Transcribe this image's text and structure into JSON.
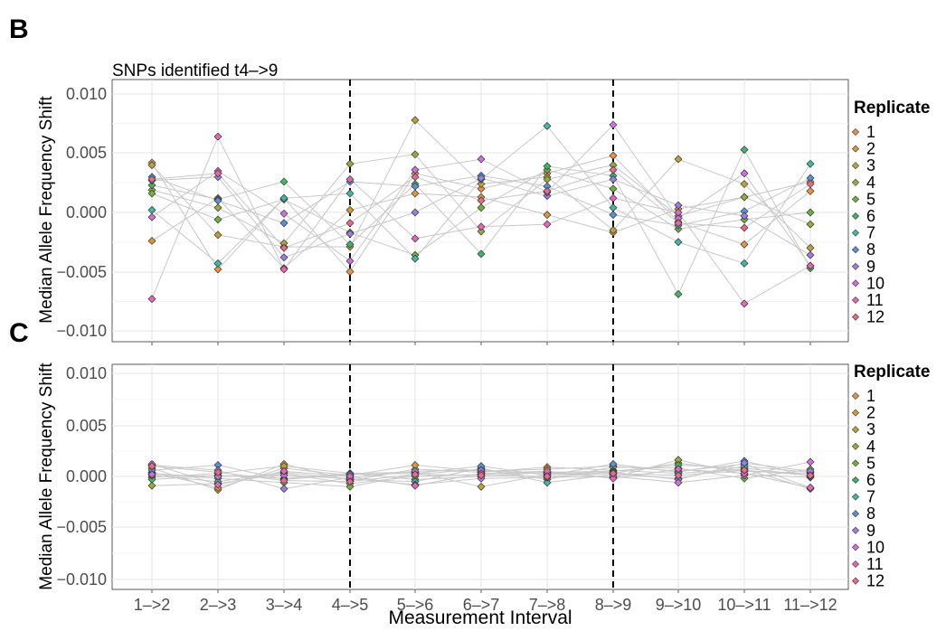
{
  "chart_data": [
    {
      "panel": "B",
      "type": "line",
      "title": "SNPs identified t4–>9",
      "xlabel": "",
      "ylabel": "Median Allele Frequency Shift",
      "categories": [
        "1–>2",
        "2–>3",
        "3–>4",
        "4–>5",
        "5–>6",
        "6–>7",
        "7–>8",
        "8–>9",
        "9–>10",
        "10–>11",
        "11–>12"
      ],
      "ylim": [
        -0.011,
        0.011
      ],
      "yticks": [
        0.01,
        0.005,
        0.0,
        -0.005,
        -0.01
      ],
      "ytick_labels": [
        "0.010",
        "0.005",
        "0.000",
        "−0.005",
        "−0.010"
      ],
      "vlines": [
        "4–>5",
        "8–>9"
      ],
      "grid": true,
      "legend_title": "Replicate",
      "legend_position": "right",
      "series": [
        {
          "name": "1",
          "color": "#e8924a",
          "values": [
            0.0042,
            -0.0048,
            0.0012,
            -0.005,
            0.0033,
            0.002,
            0.0033,
            0.0048,
            -0.0008,
            -0.0027,
            0.0018
          ]
        },
        {
          "name": "2",
          "color": "#d49a3a",
          "values": [
            -0.0024,
            0.0012,
            -0.0047,
            0.0002,
            0.0016,
            0.0013,
            -0.0002,
            -0.0017,
            0.0003,
            0.0013,
            0.0026
          ]
        },
        {
          "name": "3",
          "color": "#b9a239",
          "values": [
            0.004,
            -0.0019,
            -0.0029,
            -0.0029,
            0.0078,
            0.0024,
            0.003,
            -0.0015,
            0.0045,
            0.0024,
            -0.003
          ]
        },
        {
          "name": "4",
          "color": "#9aa93a",
          "values": [
            0.0019,
            0.0004,
            -0.0026,
            0.0041,
            0.0049,
            -0.0016,
            0.0028,
            0.004,
            -0.0003,
            0.0013,
            -0.001
          ]
        },
        {
          "name": "5",
          "color": "#6fb043",
          "values": [
            0.0016,
            -0.0006,
            0.0011,
            -0.0017,
            -0.0036,
            0.0004,
            0.0036,
            0.002,
            -0.0014,
            -0.0006,
            0.0
          ]
        },
        {
          "name": "6",
          "color": "#44b36a",
          "values": [
            0.0023,
            0.0011,
            0.0026,
            -0.0027,
            0.0024,
            -0.0035,
            0.0039,
            0.0031,
            -0.0069,
            0.0053,
            -0.0047
          ]
        },
        {
          "name": "7",
          "color": "#3fb8a5",
          "values": [
            0.0002,
            -0.0043,
            0.0012,
            0.0016,
            -0.0039,
            0.0028,
            0.0073,
            0.0004,
            -0.0025,
            -0.0043,
            0.0041
          ]
        },
        {
          "name": "8",
          "color": "#5b8fd6",
          "values": [
            0.003,
            0.001,
            -0.0009,
            0.0026,
            0.0022,
            0.0031,
            0.0022,
            -0.0002,
            -0.0011,
            0.0001,
            0.0029
          ]
        },
        {
          "name": "9",
          "color": "#9b7ee0",
          "values": [
            0.0027,
            0.003,
            -0.0038,
            -0.0018,
            0.0,
            0.0029,
            0.0014,
            0.0028,
            0.0006,
            -0.0003,
            -0.0036
          ]
        },
        {
          "name": "10",
          "color": "#cf6fe0",
          "values": [
            -0.0004,
            0.0035,
            -0.0001,
            -0.0041,
            0.0036,
            0.0045,
            0.0017,
            0.0074,
            -0.0005,
            0.0033,
            -0.0045
          ]
        },
        {
          "name": "11",
          "color": "#e467b8",
          "values": [
            -0.0073,
            0.0064,
            -0.0048,
            0.0028,
            -0.0022,
            -0.0012,
            -0.001,
            0.0012,
            0.0,
            -0.0077,
            -0.0045
          ]
        },
        {
          "name": "12",
          "color": "#e56b8b",
          "values": [
            0.0028,
            0.0033,
            -0.003,
            -0.0009,
            0.003,
            0.001,
            0.0018,
            0.0036,
            -0.0009,
            -0.0013,
            0.0024
          ]
        }
      ]
    },
    {
      "panel": "C",
      "type": "line",
      "title": "",
      "xlabel": "Measurement Interval",
      "ylabel": "Median Allele Frequency Shift",
      "categories": [
        "1–>2",
        "2–>3",
        "3–>4",
        "4–>5",
        "5–>6",
        "6–>7",
        "7–>8",
        "8–>9",
        "9–>10",
        "10–>11",
        "11–>12"
      ],
      "ylim": [
        -0.011,
        0.011
      ],
      "yticks": [
        0.01,
        0.005,
        0.0,
        -0.005,
        -0.01
      ],
      "ytick_labels": [
        "0.010",
        "0.005",
        "0.000",
        "−0.005",
        "−0.010"
      ],
      "vlines": [
        "4–>5",
        "8–>9"
      ],
      "grid": true,
      "legend_title": "Replicate",
      "legend_position": "right",
      "series": [
        {
          "name": "1",
          "color": "#e8924a",
          "values": [
            0.0008,
            -0.0013,
            0.0012,
            -0.0004,
            0.0007,
            0.0004,
            0.0009,
            0.0006,
            0.0003,
            0.0007,
            -0.0012
          ]
        },
        {
          "name": "2",
          "color": "#d49a3a",
          "values": [
            0.0004,
            -0.0011,
            0.0008,
            0.0001,
            0.0011,
            0.0005,
            0.0007,
            0.001,
            0.0005,
            0.0012,
            -0.0011
          ]
        },
        {
          "name": "3",
          "color": "#b9a239",
          "values": [
            -0.0001,
            0.0003,
            0.001,
            0.0003,
            0.0004,
            -0.001,
            0.0002,
            0.0003,
            0.0013,
            0.0005,
            0.0003
          ]
        },
        {
          "name": "4",
          "color": "#9aa93a",
          "values": [
            -0.0009,
            -0.0007,
            0.0003,
            -0.0007,
            0.0,
            0.0002,
            0.0004,
            -0.0001,
            0.0016,
            0.0002,
            -0.0001
          ]
        },
        {
          "name": "5",
          "color": "#6fb043",
          "values": [
            0.0003,
            -0.0002,
            -0.0006,
            -0.001,
            0.0002,
            0.0007,
            -0.0003,
            0.0009,
            0.0008,
            -0.0002,
            0.0007
          ]
        },
        {
          "name": "6",
          "color": "#44b36a",
          "values": [
            -0.0003,
            0.0001,
            -0.0002,
            0.0003,
            -0.0003,
            0.0,
            0.0004,
            0.0005,
            0.0011,
            0.0008,
            0.0001
          ]
        },
        {
          "name": "7",
          "color": "#3fb8a5",
          "values": [
            0.0001,
            -0.0005,
            0.0004,
            -0.0003,
            -0.0005,
            0.0008,
            -0.0006,
            0.0002,
            -0.0002,
            0.001,
            0.0004
          ]
        },
        {
          "name": "8",
          "color": "#5b8fd6",
          "values": [
            0.0006,
            0.0011,
            -0.0003,
            0.0002,
            0.0003,
            0.001,
            0.0001,
            0.0012,
            0.0004,
            0.0015,
            0.0
          ]
        },
        {
          "name": "9",
          "color": "#9b7ee0",
          "values": [
            0.0011,
            0.0006,
            -0.0012,
            -0.0001,
            0.0005,
            0.0006,
            0.0003,
            0.0004,
            -0.0003,
            0.0013,
            0.0005
          ]
        },
        {
          "name": "10",
          "color": "#cf6fe0",
          "values": [
            0.0002,
            0.0,
            0.0001,
            -0.0002,
            -0.0008,
            -0.0002,
            -0.0001,
            0.0,
            -0.0006,
            0.0001,
            0.0014
          ]
        },
        {
          "name": "11",
          "color": "#e467b8",
          "values": [
            0.0012,
            -0.0008,
            0.0005,
            0.0,
            -0.0009,
            0.0003,
            0.0005,
            -0.0002,
            0.0007,
            0.0003,
            -0.0011
          ]
        },
        {
          "name": "12",
          "color": "#e56b8b",
          "values": [
            0.001,
            0.0004,
            -0.0004,
            -0.0005,
            0.0002,
            0.0001,
            0.0,
            0.0003,
            0.0001,
            0.0006,
            0.0001
          ]
        }
      ]
    }
  ]
}
